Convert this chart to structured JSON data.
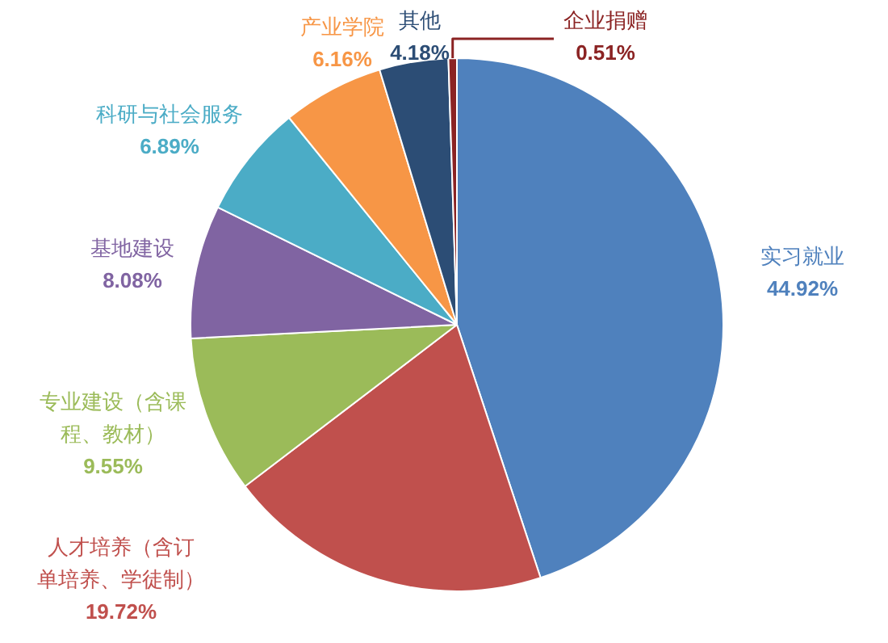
{
  "chart_data": {
    "type": "pie",
    "categories": [
      "实习就业",
      "人才培养（含订单培养、学徒制）",
      "专业建设（含课程、教材）",
      "基地建设",
      "科研与社会服务",
      "产业学院",
      "其他",
      "企业捐赠"
    ],
    "values": [
      44.92,
      19.72,
      9.55,
      8.08,
      6.89,
      6.16,
      4.18,
      0.51
    ],
    "value_labels": [
      "44.92%",
      "19.72%",
      "9.55%",
      "8.08%",
      "6.89%",
      "6.16%",
      "4.18%",
      "0.51%"
    ],
    "colors": [
      "#4f81bd",
      "#c0504d",
      "#9bbb59",
      "#8064a2",
      "#4bacc6",
      "#f79646",
      "#2c4d75",
      "#8b2323"
    ]
  }
}
